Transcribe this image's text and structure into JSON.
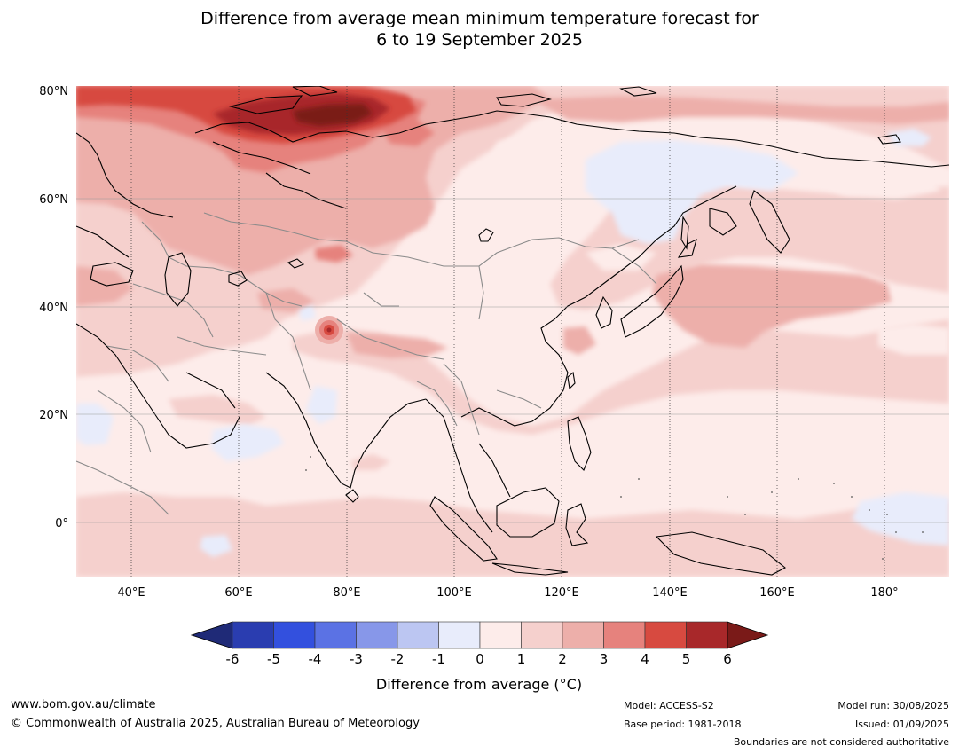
{
  "title": {
    "line1": "Difference from average mean minimum temperature forecast for",
    "line2": "6 to 19 September 2025"
  },
  "map": {
    "lat_labels": [
      "80°N",
      "60°N",
      "40°N",
      "20°N",
      "0°"
    ],
    "lon_labels": [
      "40°E",
      "60°E",
      "80°E",
      "100°E",
      "120°E",
      "140°E",
      "160°E",
      "180°"
    ]
  },
  "colorbar": {
    "ticks": [
      "-6",
      "-5",
      "-4",
      "-3",
      "-2",
      "-1",
      "0",
      "1",
      "2",
      "3",
      "4",
      "5",
      "6"
    ],
    "colors": [
      "#1f2a77",
      "#2a3db0",
      "#3350de",
      "#5b72e4",
      "#8797e9",
      "#bcc6f2",
      "#e8ecfb",
      "#fdecea",
      "#f5d0cd",
      "#edafaa",
      "#e6827d",
      "#d74a40",
      "#a8282a",
      "#7a1a18"
    ],
    "label": "Difference from average (°C)"
  },
  "footer": {
    "website": "www.bom.gov.au/climate",
    "copyright": "© Commonwealth of Australia 2025, Australian Bureau of Meteorology",
    "model": "Model: ACCESS-S2",
    "base_period": "Base period: 1981-2018",
    "model_run": "Model run: 30/08/2025",
    "issued": "Issued: 01/09/2025",
    "disclaimer": "Boundaries are not considered authoritative"
  }
}
